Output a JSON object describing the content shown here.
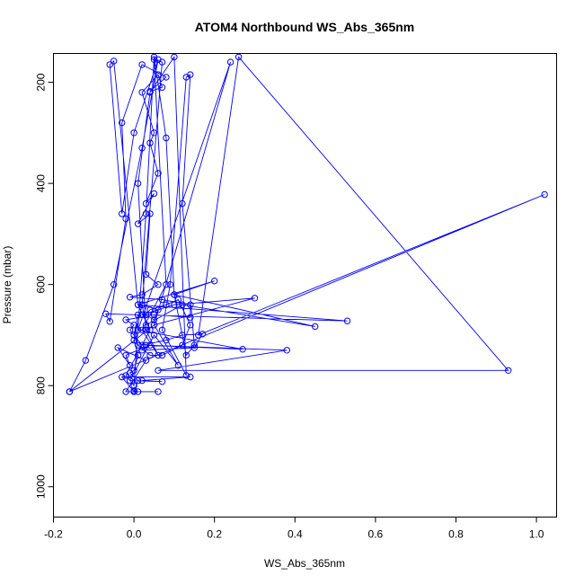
{
  "chart_data": {
    "type": "line",
    "title": "ATOM4 Northbound WS_Abs_365nm",
    "xlabel": "WS_Abs_365nm",
    "ylabel": "Pressure (mbar)",
    "xlim": [
      -0.2,
      1.05
    ],
    "ylim": [
      1060,
      143
    ],
    "y_axis_reversed": true,
    "xticks": [
      -0.2,
      0.0,
      0.2,
      0.4,
      0.6,
      0.8,
      1.0
    ],
    "xtick_labels": [
      "-0.2",
      "0.0",
      "0.2",
      "0.4",
      "0.6",
      "0.8",
      "1.0"
    ],
    "yticks": [
      200,
      400,
      600,
      800,
      1000
    ],
    "ytick_labels": [
      "200",
      "400",
      "600",
      "800",
      "1000"
    ],
    "grid": false,
    "legend": "none",
    "series_color": "#0000ff",
    "marker": "open-circle",
    "series": [
      {
        "points": [
          [
            -0.16,
            812
          ],
          [
            -0.12,
            750
          ],
          [
            -0.05,
            600
          ],
          [
            0.02,
            330
          ],
          [
            0.06,
            155
          ],
          [
            0.0,
            300
          ],
          [
            -0.03,
            460
          ],
          [
            -0.06,
            165
          ],
          [
            -0.05,
            158
          ],
          [
            0.01,
            640
          ],
          [
            0.04,
            690
          ],
          [
            -0.02,
            780
          ],
          [
            0.0,
            800
          ],
          [
            0.03,
            460
          ],
          [
            0.05,
            150
          ],
          [
            0.08,
            310
          ],
          [
            0.1,
            620
          ],
          [
            0.13,
            740
          ],
          [
            0.15,
            720
          ],
          [
            0.12,
            440
          ],
          [
            0.14,
            185
          ],
          [
            0.13,
            190
          ],
          [
            0.09,
            600
          ],
          [
            0.07,
            690
          ],
          [
            0.13,
            780
          ],
          [
            0.1,
            150
          ],
          [
            0.04,
            220
          ],
          [
            0.01,
            400
          ],
          [
            0.03,
            690
          ],
          [
            0.06,
            740
          ],
          [
            0.02,
            690
          ],
          [
            0.08,
            600
          ],
          [
            0.05,
            155
          ],
          [
            0.07,
            160
          ],
          [
            0.02,
            640
          ],
          [
            0.03,
            680
          ],
          [
            0.12,
            640
          ],
          [
            0.45,
            683
          ],
          [
            0.1,
            620
          ],
          [
            0.2,
            593
          ],
          [
            0.01,
            640
          ],
          [
            0.53,
            672
          ],
          [
            0.02,
            660
          ],
          [
            0.1,
            640
          ],
          [
            0.3,
            627
          ],
          [
            0.05,
            680
          ],
          [
            0.24,
            160
          ],
          [
            0.01,
            690
          ],
          [
            0.27,
            728
          ],
          [
            0.03,
            720
          ],
          [
            0.38,
            730
          ],
          [
            0.06,
            770
          ],
          [
            0.93,
            770
          ],
          [
            0.26,
            150
          ],
          [
            0.16,
            700
          ],
          [
            1.02,
            422
          ],
          [
            -0.16,
            812
          ],
          [
            0.05,
            680
          ],
          [
            0.11,
            760
          ],
          [
            0.05,
            700
          ],
          [
            -0.01,
            790
          ],
          [
            0.07,
            792
          ],
          [
            0.02,
            790
          ],
          [
            0.14,
            783
          ],
          [
            -0.03,
            783
          ],
          [
            0.0,
            812
          ],
          [
            0.0,
            810
          ],
          [
            0.01,
            812
          ],
          [
            -0.02,
            812
          ],
          [
            0.03,
            750
          ],
          [
            -0.04,
            725
          ],
          [
            -0.01,
            760
          ],
          [
            -0.02,
            740
          ],
          [
            0.04,
            720
          ],
          [
            0.02,
            730
          ],
          [
            0.15,
            725
          ],
          [
            0.17,
            698
          ],
          [
            0.12,
            700
          ],
          [
            0.08,
            710
          ],
          [
            0.02,
            720
          ],
          [
            0.0,
            700
          ],
          [
            -0.01,
            690
          ],
          [
            0.0,
            680
          ],
          [
            -0.02,
            670
          ],
          [
            0.05,
            660
          ],
          [
            0.14,
            665
          ],
          [
            0.14,
            640
          ],
          [
            0.07,
            630
          ],
          [
            -0.01,
            625
          ],
          [
            0.02,
            620
          ],
          [
            0.06,
            600
          ],
          [
            0.03,
            580
          ],
          [
            0.04,
            460
          ],
          [
            0.01,
            480
          ],
          [
            0.05,
            420
          ],
          [
            0.03,
            440
          ],
          [
            0.06,
            380
          ],
          [
            0.04,
            320
          ],
          [
            0.05,
            300
          ],
          [
            0.02,
            220
          ],
          [
            0.06,
            185
          ],
          [
            0.07,
            210
          ],
          [
            0.04,
            218
          ],
          [
            0.08,
            190
          ],
          [
            0.02,
            165
          ],
          [
            -0.03,
            280
          ],
          [
            -0.02,
            470
          ],
          [
            -0.06,
            673
          ],
          [
            -0.07,
            658
          ],
          [
            0.01,
            660
          ],
          [
            0.0,
            700
          ],
          [
            0.01,
            720
          ],
          [
            0.04,
            740
          ],
          [
            0.07,
            740
          ],
          [
            0.12,
            720
          ],
          [
            0.14,
            680
          ],
          [
            0.11,
            630
          ],
          [
            0.08,
            640
          ],
          [
            0.04,
            650
          ],
          [
            0.03,
            660
          ],
          [
            0.05,
            670
          ],
          [
            0.06,
            650
          ],
          [
            0.02,
            640
          ],
          [
            0.0,
            710
          ],
          [
            0.01,
            740
          ],
          [
            0.0,
            770
          ],
          [
            -0.01,
            775
          ],
          [
            0.01,
            790
          ],
          [
            0.0,
            812
          ],
          [
            0.06,
            812
          ]
        ]
      }
    ]
  }
}
